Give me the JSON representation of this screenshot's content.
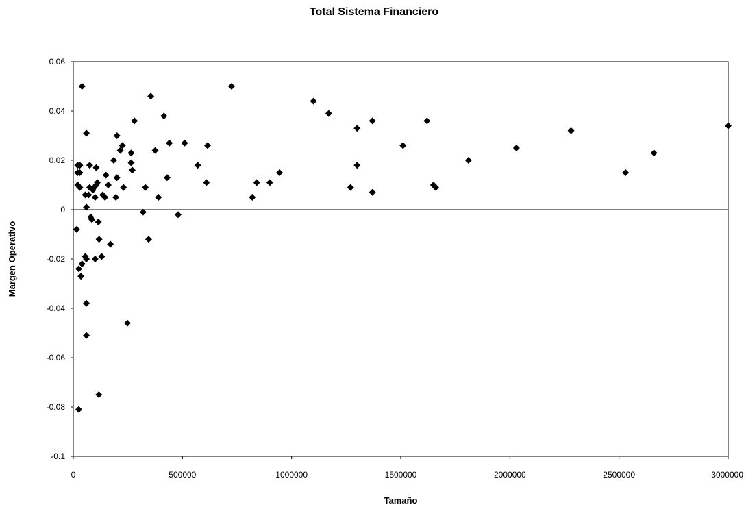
{
  "chart_data": {
    "type": "scatter",
    "title": "Total Sistema Financiero",
    "xlabel": "Tamaño",
    "ylabel": "Margen Operativo",
    "xlim": [
      0,
      3000000
    ],
    "ylim": [
      -0.1,
      0.06
    ],
    "x_ticks": [
      "0",
      "500000",
      "1000000",
      "1500000",
      "2000000",
      "2500000",
      "3000000"
    ],
    "y_ticks": [
      "0.06",
      "0.04",
      "0.02",
      "0",
      "-0.02",
      "-0.04",
      "-0.06",
      "-0.08",
      "-0.1"
    ],
    "grid": false,
    "legend": "none",
    "marker": "diamond",
    "marker_color": "#000000",
    "points": [
      [
        25000,
        -0.081
      ],
      [
        117000,
        -0.075
      ],
      [
        60000,
        -0.051
      ],
      [
        248000,
        -0.046
      ],
      [
        60000,
        -0.038
      ],
      [
        25000,
        -0.024
      ],
      [
        40000,
        -0.022
      ],
      [
        35000,
        -0.027
      ],
      [
        55000,
        -0.019
      ],
      [
        60000,
        -0.02
      ],
      [
        100000,
        -0.02
      ],
      [
        130000,
        -0.019
      ],
      [
        118000,
        -0.012
      ],
      [
        170000,
        -0.014
      ],
      [
        345000,
        -0.012
      ],
      [
        15000,
        -0.008
      ],
      [
        80000,
        -0.003
      ],
      [
        85000,
        -0.004
      ],
      [
        115000,
        -0.005
      ],
      [
        320000,
        -0.001
      ],
      [
        480000,
        -0.002
      ],
      [
        60000,
        0.001
      ],
      [
        55000,
        0.006
      ],
      [
        70000,
        0.006
      ],
      [
        100000,
        0.005
      ],
      [
        135000,
        0.006
      ],
      [
        145000,
        0.005
      ],
      [
        195000,
        0.005
      ],
      [
        390000,
        0.005
      ],
      [
        820000,
        0.005
      ],
      [
        30000,
        0.009
      ],
      [
        20000,
        0.01
      ],
      [
        75000,
        0.009
      ],
      [
        90000,
        0.008
      ],
      [
        95000,
        0.009
      ],
      [
        105000,
        0.01
      ],
      [
        110000,
        0.011
      ],
      [
        230000,
        0.009
      ],
      [
        330000,
        0.009
      ],
      [
        160000,
        0.01
      ],
      [
        610000,
        0.011
      ],
      [
        840000,
        0.011
      ],
      [
        900000,
        0.011
      ],
      [
        1270000,
        0.009
      ],
      [
        1370000,
        0.007
      ],
      [
        1650000,
        0.01
      ],
      [
        1660000,
        0.009
      ],
      [
        20000,
        0.015
      ],
      [
        30000,
        0.015
      ],
      [
        20000,
        0.018
      ],
      [
        30000,
        0.018
      ],
      [
        75000,
        0.018
      ],
      [
        105000,
        0.017
      ],
      [
        150000,
        0.014
      ],
      [
        185000,
        0.02
      ],
      [
        200000,
        0.013
      ],
      [
        270000,
        0.016
      ],
      [
        265000,
        0.019
      ],
      [
        430000,
        0.013
      ],
      [
        570000,
        0.018
      ],
      [
        945000,
        0.015
      ],
      [
        1300000,
        0.018
      ],
      [
        1810000,
        0.02
      ],
      [
        2530000,
        0.015
      ],
      [
        200000,
        0.03
      ],
      [
        215000,
        0.024
      ],
      [
        225000,
        0.026
      ],
      [
        265000,
        0.023
      ],
      [
        375000,
        0.024
      ],
      [
        440000,
        0.027
      ],
      [
        510000,
        0.027
      ],
      [
        615000,
        0.026
      ],
      [
        1510000,
        0.026
      ],
      [
        2030000,
        0.025
      ],
      [
        2660000,
        0.023
      ],
      [
        60000,
        0.031
      ],
      [
        280000,
        0.036
      ],
      [
        415000,
        0.038
      ],
      [
        1300000,
        0.033
      ],
      [
        1370000,
        0.036
      ],
      [
        1620000,
        0.036
      ],
      [
        2280000,
        0.032
      ],
      [
        3000000,
        0.034
      ],
      [
        1170000,
        0.039
      ],
      [
        1100000,
        0.044
      ],
      [
        355000,
        0.046
      ],
      [
        40000,
        0.05
      ],
      [
        725000,
        0.05
      ]
    ]
  }
}
